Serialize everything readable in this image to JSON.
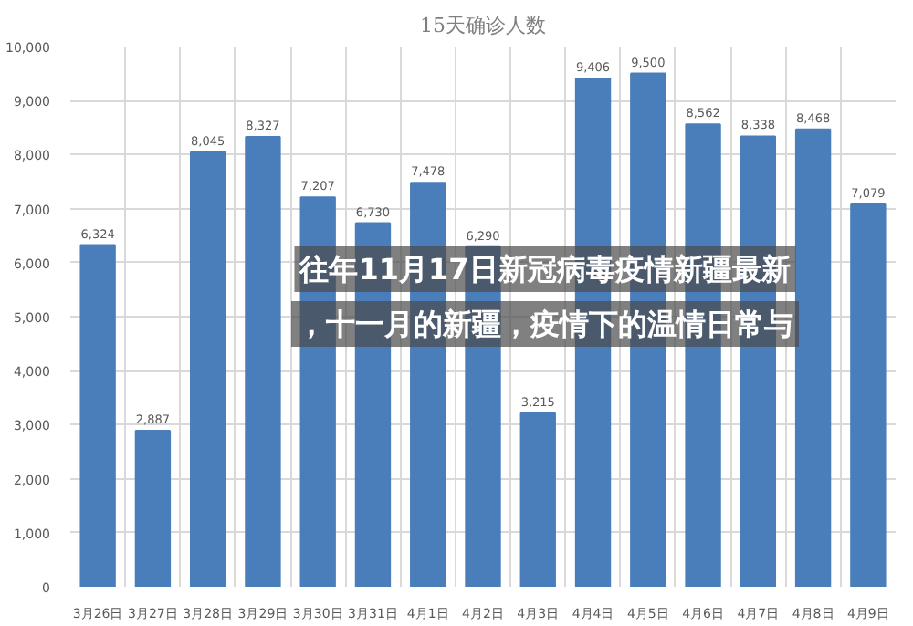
{
  "chart_data": {
    "type": "bar",
    "title": "15天确诊人数",
    "categories": [
      "3月26日",
      "3月27日",
      "3月28日",
      "3月29日",
      "3月30日",
      "3月31日",
      "4月1日",
      "4月2日",
      "4月3日",
      "4月4日",
      "4月5日",
      "4月6日",
      "4月7日",
      "4月8日",
      "4月9日"
    ],
    "values": [
      6324,
      2887,
      8045,
      8327,
      7207,
      6730,
      7478,
      6290,
      3215,
      9406,
      9500,
      8562,
      8338,
      8468,
      7079
    ],
    "color": "#4a7ebb",
    "value_labels": [
      "6,324",
      "2,887",
      "8,045",
      "8,327",
      "7,207",
      "6,730",
      "7,478",
      "6,290",
      "3,215",
      "9,406",
      "9,500",
      "8,562",
      "8,338",
      "8,468",
      "7,079"
    ],
    "ylim": [
      0,
      10000
    ],
    "yticks": [
      {
        "value": 0,
        "label": "0"
      },
      {
        "value": 1000,
        "label": "1,000"
      },
      {
        "value": 2000,
        "label": "2,000"
      },
      {
        "value": 3000,
        "label": "3,000"
      },
      {
        "value": 4000,
        "label": "4,000"
      },
      {
        "value": 5000,
        "label": "5,000"
      },
      {
        "value": 6000,
        "label": "6,000"
      },
      {
        "value": 7000,
        "label": "7,000"
      },
      {
        "value": 8000,
        "label": "8,000"
      },
      {
        "value": 9000,
        "label": "9,000"
      },
      {
        "value": 10000,
        "label": "10,000"
      }
    ],
    "grid": true,
    "annotations": [
      "往年11月17日新冠病毒疫情新疆最新",
      "，十一月的新疆，疫情下的温情日常与"
    ]
  }
}
